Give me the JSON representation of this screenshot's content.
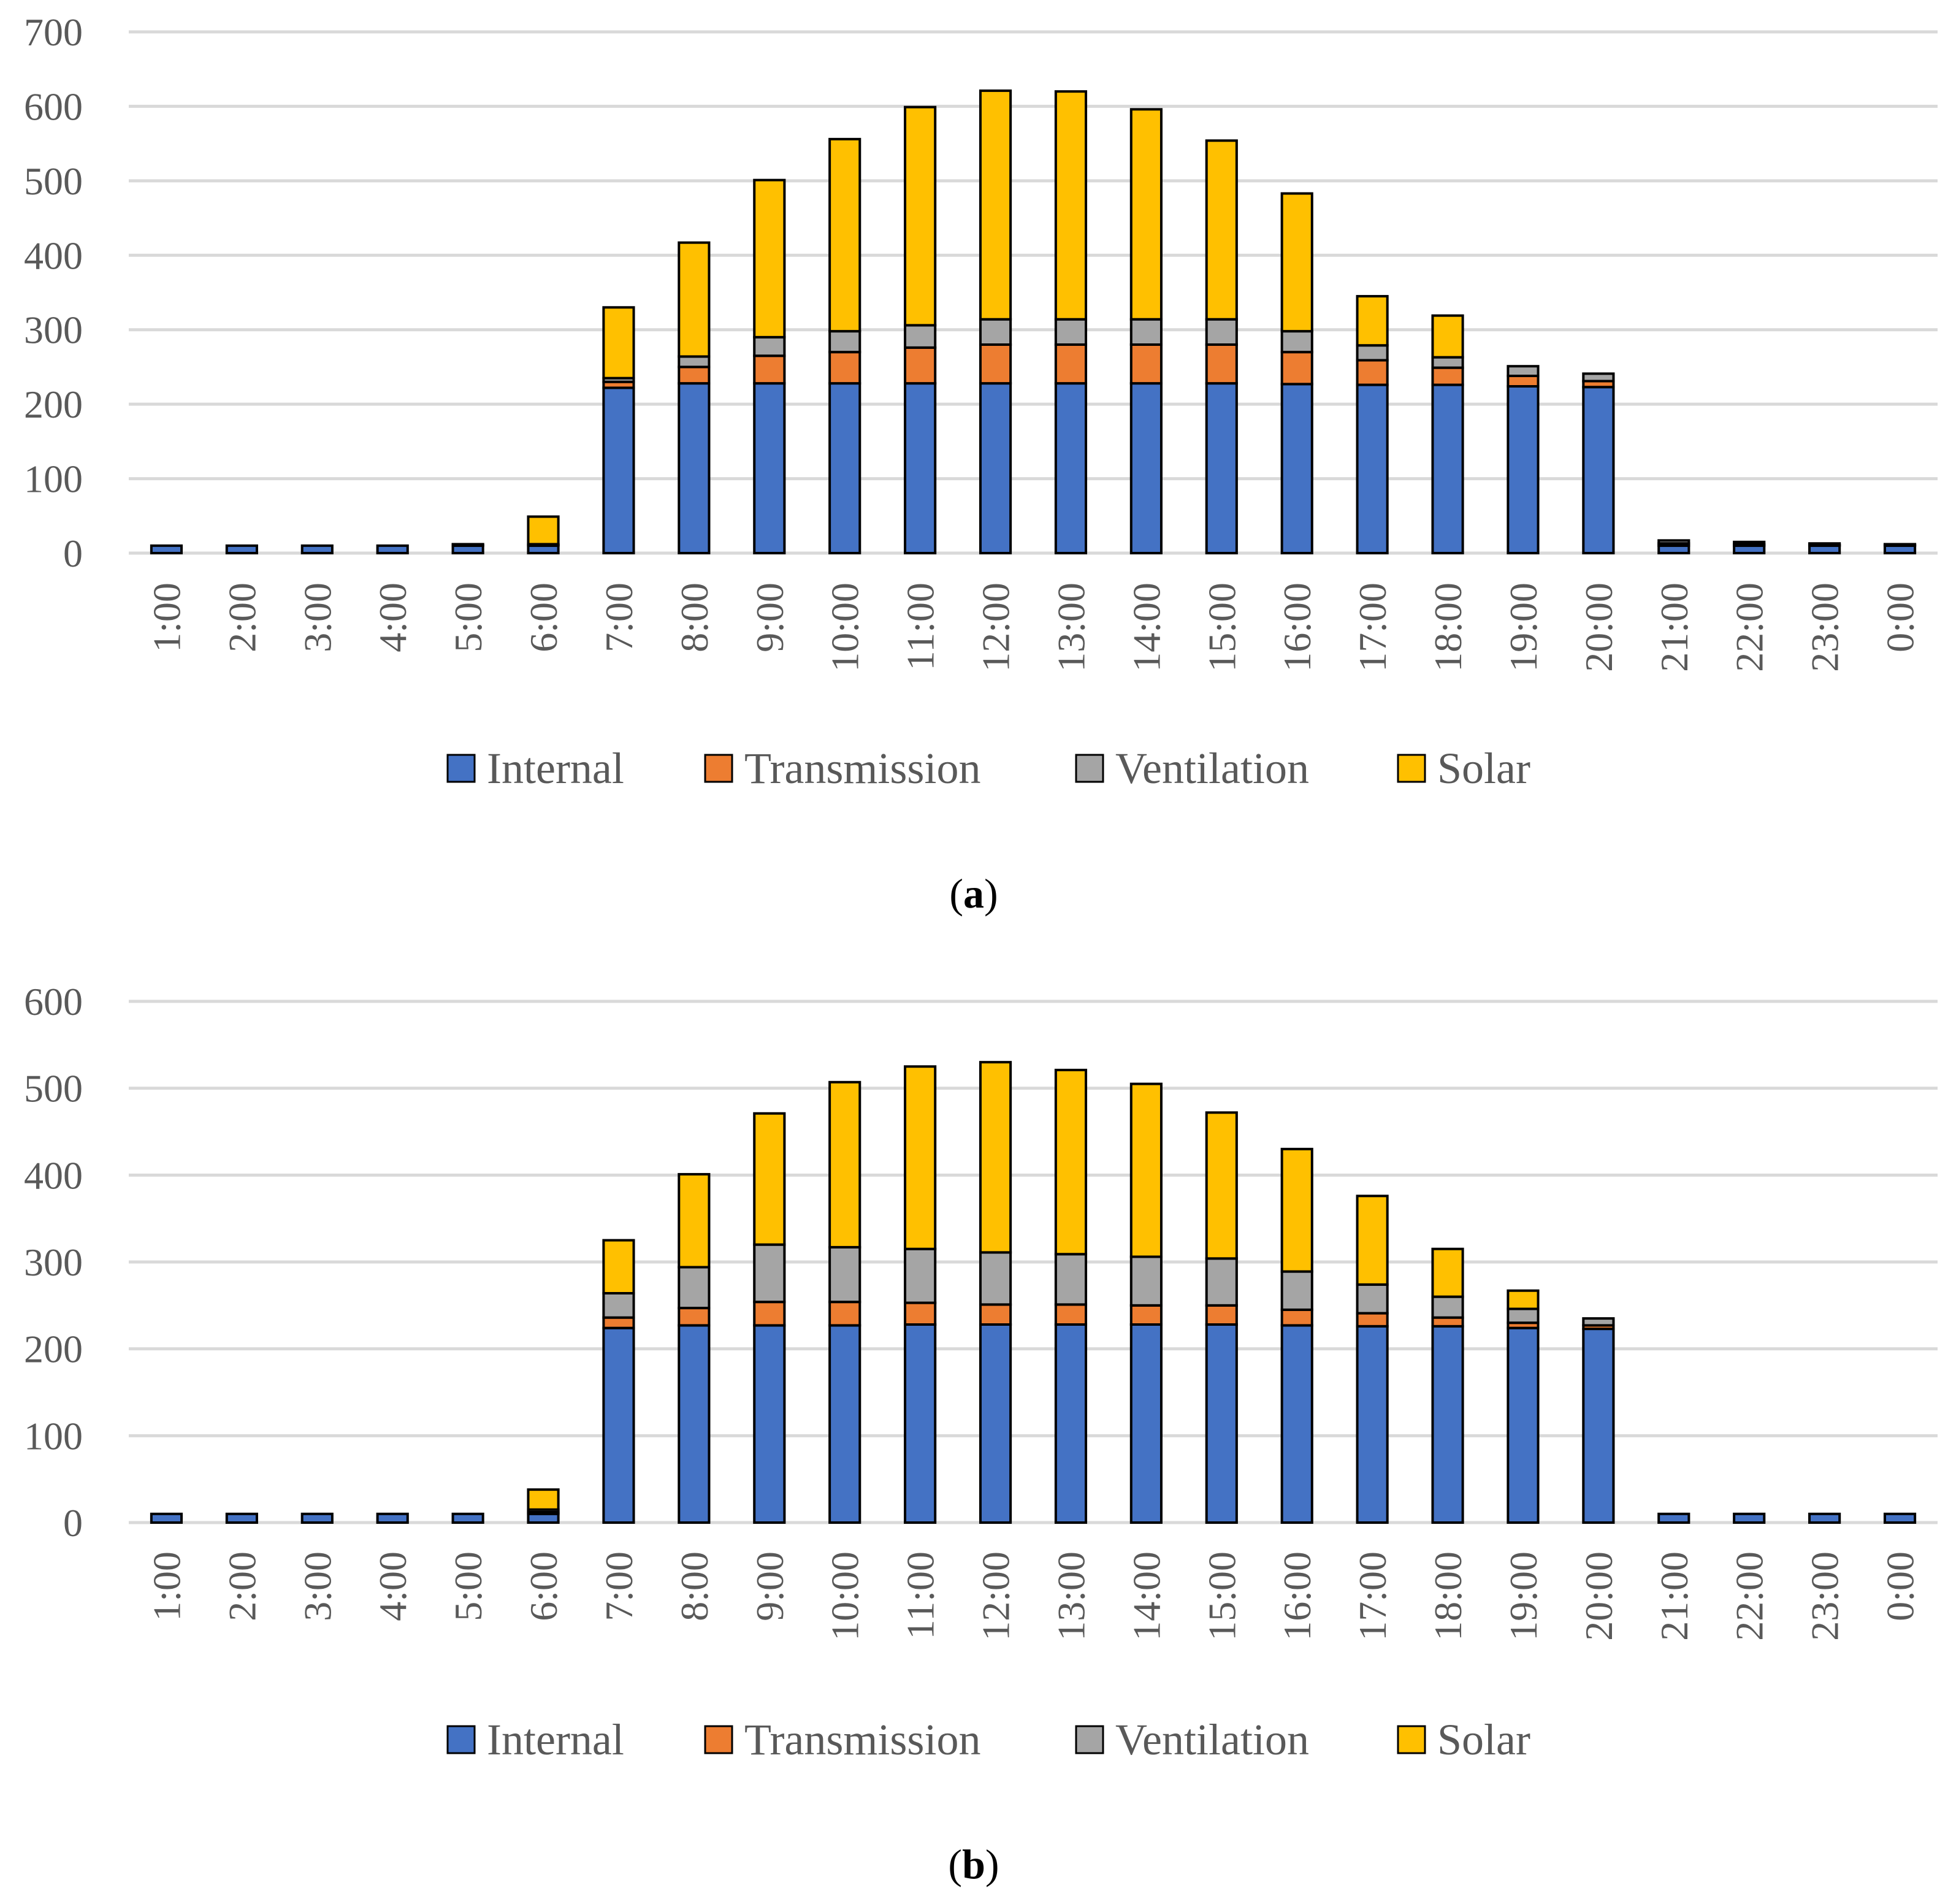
{
  "colors": {
    "internal": "#4472C4",
    "transmission": "#ED7D31",
    "ventilation": "#A5A5A5",
    "solar": "#FFC000",
    "grid": "#D9D9D9",
    "axis_text": "#595959",
    "bar_outline": "#000000"
  },
  "chart_data": [
    {
      "type": "bar",
      "stacked": true,
      "panel_label": "a",
      "categories": [
        "1:00",
        "2:00",
        "3:00",
        "4:00",
        "5:00",
        "6:00",
        "7:00",
        "8:00",
        "9:00",
        "10:00",
        "11:00",
        "12:00",
        "13:00",
        "14:00",
        "15:00",
        "16:00",
        "17:00",
        "18:00",
        "19:00",
        "20:00",
        "21:00",
        "22:00",
        "23:00",
        "0:00"
      ],
      "ylim": [
        0,
        700
      ],
      "yticks": [
        "0",
        "100",
        "200",
        "300",
        "400",
        "500",
        "600",
        "700"
      ],
      "grid": true,
      "legend_position": "bottom",
      "series": [
        {
          "name": "Internal",
          "color_key": "internal",
          "values": [
            10,
            10,
            10,
            10,
            10,
            10,
            222,
            228,
            228,
            228,
            228,
            228,
            228,
            228,
            228,
            227,
            226,
            226,
            224,
            223,
            10,
            10,
            10,
            10
          ]
        },
        {
          "name": "Transmission",
          "color_key": "transmission",
          "values": [
            0,
            0,
            0,
            0,
            1,
            1,
            8,
            22,
            37,
            42,
            48,
            52,
            52,
            52,
            52,
            43,
            33,
            23,
            14,
            8,
            3,
            2,
            1,
            1
          ]
        },
        {
          "name": "Ventilation",
          "color_key": "ventilation",
          "values": [
            0,
            0,
            0,
            0,
            1,
            1,
            5,
            14,
            25,
            28,
            30,
            34,
            34,
            34,
            34,
            28,
            20,
            14,
            13,
            10,
            4,
            3,
            2,
            1
          ]
        },
        {
          "name": "Solar",
          "color_key": "solar",
          "values": [
            0,
            0,
            0,
            0,
            0,
            37,
            95,
            153,
            211,
            258,
            293,
            307,
            306,
            282,
            240,
            185,
            66,
            56,
            0,
            0,
            0,
            0,
            0,
            0
          ]
        }
      ]
    },
    {
      "type": "bar",
      "stacked": true,
      "panel_label": "b",
      "categories": [
        "1:00",
        "2:00",
        "3:00",
        "4:00",
        "5:00",
        "6:00",
        "7:00",
        "8:00",
        "9:00",
        "10:00",
        "11:00",
        "12:00",
        "13:00",
        "14:00",
        "15:00",
        "16:00",
        "17:00",
        "18:00",
        "19:00",
        "20:00",
        "21:00",
        "22:00",
        "23:00",
        "0:00"
      ],
      "ylim": [
        0,
        600
      ],
      "yticks": [
        "0",
        "100",
        "200",
        "300",
        "400",
        "500",
        "600"
      ],
      "grid": true,
      "legend_position": "bottom",
      "series": [
        {
          "name": "Internal",
          "color_key": "internal",
          "values": [
            10,
            10,
            10,
            10,
            10,
            10,
            224,
            227,
            227,
            227,
            228,
            228,
            228,
            228,
            228,
            227,
            226,
            226,
            224,
            223,
            10,
            10,
            10,
            10
          ]
        },
        {
          "name": "Transmission",
          "color_key": "transmission",
          "values": [
            0,
            0,
            0,
            0,
            0,
            2,
            12,
            20,
            27,
            27,
            25,
            23,
            23,
            22,
            22,
            18,
            15,
            10,
            6,
            4,
            0,
            0,
            0,
            0
          ]
        },
        {
          "name": "Ventilation",
          "color_key": "ventilation",
          "values": [
            0,
            0,
            0,
            0,
            0,
            3,
            28,
            47,
            66,
            63,
            62,
            60,
            58,
            56,
            54,
            44,
            33,
            24,
            16,
            8,
            0,
            0,
            0,
            0
          ]
        },
        {
          "name": "Solar",
          "color_key": "solar",
          "values": [
            0,
            0,
            0,
            0,
            0,
            23,
            61,
            107,
            151,
            190,
            210,
            219,
            212,
            199,
            168,
            141,
            102,
            55,
            21,
            0,
            0,
            0,
            0,
            0
          ]
        }
      ]
    }
  ]
}
